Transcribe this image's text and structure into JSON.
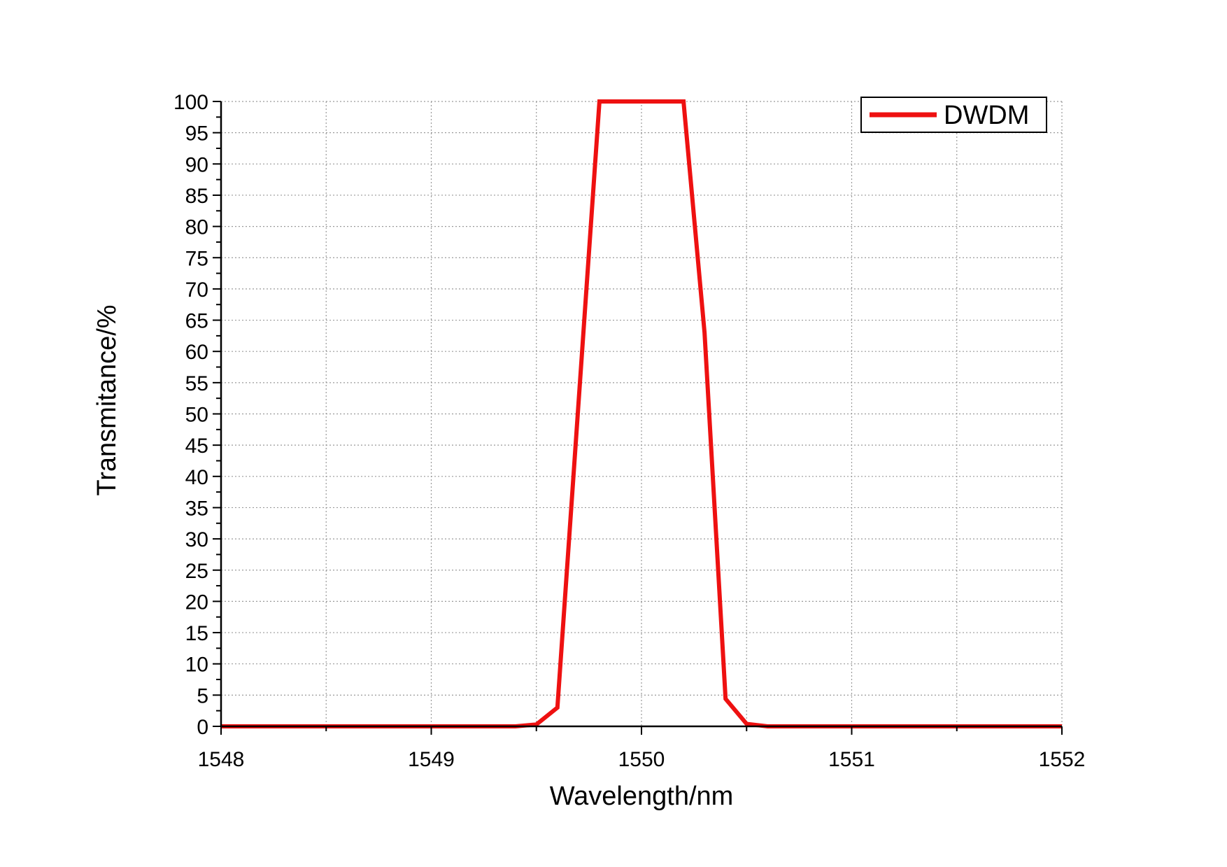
{
  "chart_data": {
    "type": "line",
    "x_label": "Wavelength/nm",
    "y_label": "Transmitance/%",
    "x": [
      1548,
      1549.4,
      1549.5,
      1549.6,
      1549.8,
      1550.2,
      1550.3,
      1550.4,
      1550.5,
      1550.6,
      1552
    ],
    "series": [
      {
        "name": "DWDM",
        "color": "#ee1111",
        "values": [
          0,
          0,
          0.3,
          3,
          100,
          100,
          63,
          4.4,
          0.4,
          0,
          0
        ]
      }
    ],
    "xlim": [
      1548,
      1552
    ],
    "xticks": [
      1548,
      1549,
      1550,
      1551,
      1552
    ],
    "ylim": [
      0,
      100
    ],
    "yticks": [
      0,
      5,
      10,
      15,
      20,
      25,
      30,
      35,
      40,
      45,
      50,
      55,
      60,
      65,
      70,
      75,
      80,
      85,
      90,
      95,
      100
    ],
    "grid": true,
    "legend": "upper right"
  }
}
